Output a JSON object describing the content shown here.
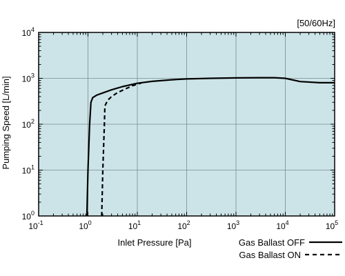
{
  "chart_data": {
    "type": "line",
    "frequency_note": "[50/60Hz]",
    "xlabel": "Inlet Pressure [Pa]",
    "ylabel": "Pumping Speed [L/min]",
    "x_scale": "log",
    "y_scale": "log",
    "xlim": [
      0.1,
      100000
    ],
    "ylim": [
      1,
      10000
    ],
    "grid": true,
    "legend_position": "bottom-right",
    "plot_background": "#cce4e8",
    "x_ticks": [
      {
        "value": 0.1,
        "base": "10",
        "exp": "-1"
      },
      {
        "value": 1,
        "base": "10",
        "exp": "0"
      },
      {
        "value": 10,
        "base": "10",
        "exp": "1"
      },
      {
        "value": 100,
        "base": "10",
        "exp": "2"
      },
      {
        "value": 1000,
        "base": "10",
        "exp": "3"
      },
      {
        "value": 10000,
        "base": "10",
        "exp": "4"
      },
      {
        "value": 100000,
        "base": "10",
        "exp": "5"
      }
    ],
    "y_ticks": [
      {
        "value": 1,
        "base": "10",
        "exp": "0"
      },
      {
        "value": 10,
        "base": "10",
        "exp": "1"
      },
      {
        "value": 100,
        "base": "10",
        "exp": "2"
      },
      {
        "value": 1000,
        "base": "10",
        "exp": "3"
      },
      {
        "value": 10000,
        "base": "10",
        "exp": "4"
      }
    ],
    "series": [
      {
        "name": "Gas Ballast OFF",
        "style": "solid",
        "points": [
          [
            0.95,
            1
          ],
          [
            1.0,
            10
          ],
          [
            1.08,
            100
          ],
          [
            1.15,
            300
          ],
          [
            1.25,
            380
          ],
          [
            1.5,
            430
          ],
          [
            2.0,
            480
          ],
          [
            3.0,
            560
          ],
          [
            5.0,
            660
          ],
          [
            10.0,
            780
          ],
          [
            20.0,
            860
          ],
          [
            50.0,
            930
          ],
          [
            100.0,
            970
          ],
          [
            300.0,
            1000
          ],
          [
            1000.0,
            1020
          ],
          [
            3000.0,
            1030
          ],
          [
            6000.0,
            1030
          ],
          [
            10000.0,
            1000
          ],
          [
            20000.0,
            850
          ],
          [
            50000.0,
            800
          ],
          [
            100000.0,
            800
          ]
        ]
      },
      {
        "name": "Gas Ballast ON",
        "style": "dashed",
        "points": [
          [
            1.9,
            1
          ],
          [
            2.0,
            10
          ],
          [
            2.15,
            100
          ],
          [
            2.2,
            250
          ],
          [
            2.5,
            330
          ],
          [
            3.0,
            400
          ],
          [
            4.0,
            490
          ],
          [
            6.0,
            600
          ],
          [
            8.0,
            690
          ],
          [
            12.0,
            790
          ]
        ]
      }
    ]
  }
}
